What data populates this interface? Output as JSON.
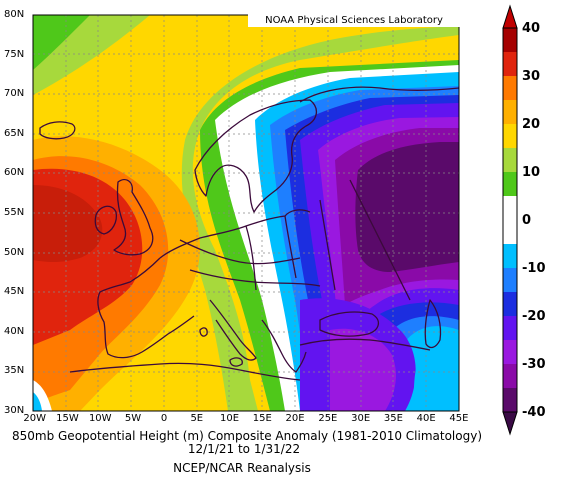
{
  "credit": "NOAA Physical Sciences Laboratory",
  "caption": {
    "line1": "850mb Geopotential Height (m) Composite Anomaly (1981-2010 Climatology)",
    "line2": "12/1/21 to 1/31/22",
    "line3": "NCEP/NCAR Reanalysis"
  },
  "lat_labels": [
    "80N",
    "75N",
    "70N",
    "65N",
    "60N",
    "55N",
    "50N",
    "45N",
    "40N",
    "35N",
    "30N"
  ],
  "lon_labels": [
    "20W",
    "15W",
    "10W",
    "5W",
    "0",
    "5E",
    "10E",
    "15E",
    "20E",
    "25E",
    "30E",
    "35E",
    "40E",
    "45E"
  ],
  "colorbar": {
    "ticks": [
      "40",
      "30",
      "20",
      "10",
      "0",
      "-10",
      "-20",
      "-30",
      "-40"
    ],
    "colors": [
      "#a50000",
      "#e0240d",
      "#ff7a00",
      "#ffb000",
      "#ffd700",
      "#a7d93c",
      "#4fc81a",
      "#ffffff",
      "#ffffff",
      "#00bfff",
      "#1e7fff",
      "#1c2ee0",
      "#6214f0",
      "#9a18e0",
      "#8a0aa8",
      "#5a0a6a"
    ]
  },
  "chart_data": {
    "type": "heatmap",
    "title": "850mb Geopotential Height (m) Composite Anomaly (1981-2010 Climatology)",
    "subtitle": "12/1/21 to 1/31/22",
    "source": "NCEP/NCAR Reanalysis",
    "x_range": [
      "20W",
      "45E"
    ],
    "y_range": [
      "30N",
      "80N"
    ],
    "colorbar_range": [
      -40,
      40
    ],
    "colorbar_interval": 5,
    "features": [
      {
        "name": "positive anomaly center",
        "location": "west of British Isles, ~55N 17W",
        "value": 35
      },
      {
        "name": "negative anomaly center",
        "location": "western Russia, ~55N 37E",
        "value": -40
      }
    ]
  }
}
